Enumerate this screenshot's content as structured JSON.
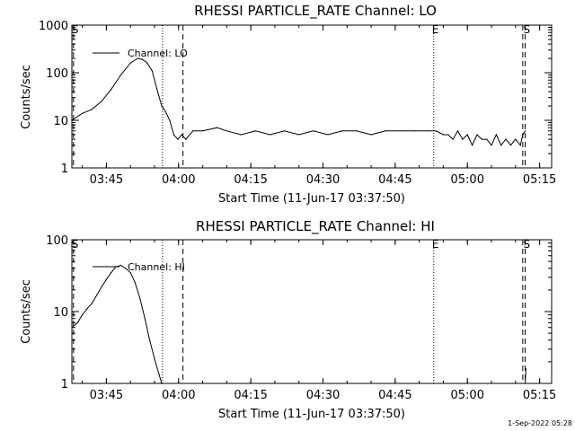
{
  "footer": {
    "timestamp": "1-Sep-2022 05:28"
  },
  "chart_data": [
    {
      "type": "line",
      "title": "RHESSI PARTICLE_RATE Channel: LO",
      "xlabel": "Start Time (11-Jun-17 03:37:50)",
      "ylabel": "Counts/sec",
      "legend_label": "Channel: LO",
      "legend_position": "top-left",
      "y_scale": "log",
      "ylim": [
        1,
        1000
      ],
      "xlim": [
        "03:37:50",
        "05:17:30"
      ],
      "x_ticks": [
        "03:45",
        "04:00",
        "04:15",
        "04:30",
        "04:45",
        "05:00",
        "05:15"
      ],
      "y_ticks": [
        "1",
        "10",
        "100",
        "1000"
      ],
      "markers": [
        {
          "label": "S",
          "time": "03:38:10",
          "style": "dashed"
        },
        {
          "label": "",
          "time": "03:56:40",
          "style": "dotted"
        },
        {
          "label": "",
          "time": "04:00:55",
          "style": "dashed"
        },
        {
          "label": "E",
          "time": "04:53:00",
          "style": "dotted"
        },
        {
          "label": "",
          "time": "05:11:30",
          "style": "dashed"
        },
        {
          "label": "S",
          "time": "05:12:00",
          "style": "dashed"
        }
      ],
      "series": [
        {
          "name": "Channel: LO",
          "x": [
            "03:37:50",
            "03:40:00",
            "03:42:00",
            "03:44:00",
            "03:46:00",
            "03:48:00",
            "03:50:00",
            "03:51:30",
            "03:52:30",
            "03:53:30",
            "03:54:30",
            "03:55:30",
            "03:56:30",
            "03:57:20",
            "03:58:10",
            "03:59:00",
            "03:59:50",
            "04:00:40",
            "04:01:30",
            "04:03:00",
            "04:05:00",
            "04:08:00",
            "04:10:00",
            "04:13:00",
            "04:16:00",
            "04:19:00",
            "04:22:00",
            "04:25:00",
            "04:28:00",
            "04:31:00",
            "04:34:00",
            "04:37:00",
            "04:40:00",
            "04:43:00",
            "04:46:00",
            "04:49:00",
            "04:52:00",
            "04:53:30",
            "04:55:00",
            "04:56:00",
            "04:57:00",
            "04:58:00",
            "04:59:00",
            "05:00:00",
            "05:01:00",
            "05:02:00",
            "05:03:00",
            "05:04:00",
            "05:05:00",
            "05:06:00",
            "05:07:00",
            "05:08:00",
            "05:09:00",
            "05:10:00",
            "05:11:00",
            "05:11:30",
            "05:12:00"
          ],
          "values": [
            10,
            14,
            17,
            25,
            45,
            90,
            160,
            200,
            190,
            160,
            110,
            45,
            20,
            15,
            10,
            5,
            4,
            5,
            4,
            6,
            6,
            7,
            6,
            5,
            6,
            5,
            6,
            5,
            6,
            5,
            6,
            6,
            5,
            6,
            6,
            6,
            6,
            6,
            5,
            5,
            4,
            6,
            4,
            5,
            3,
            5,
            4,
            4,
            3,
            5,
            3,
            4,
            3,
            4,
            3,
            5,
            6
          ]
        }
      ]
    },
    {
      "type": "line",
      "title": "RHESSI PARTICLE_RATE Channel: HI",
      "xlabel": "Start Time (11-Jun-17 03:37:50)",
      "ylabel": "Counts/sec",
      "legend_label": "Channel: HI",
      "legend_position": "top-left",
      "y_scale": "log",
      "ylim": [
        1,
        100
      ],
      "xlim": [
        "03:37:50",
        "05:17:30"
      ],
      "x_ticks": [
        "03:45",
        "04:00",
        "04:15",
        "04:30",
        "04:45",
        "05:00",
        "05:15"
      ],
      "y_ticks": [
        "1",
        "10",
        "100"
      ],
      "markers": [
        {
          "label": "S",
          "time": "03:38:10",
          "style": "dashed"
        },
        {
          "label": "",
          "time": "03:56:40",
          "style": "dotted"
        },
        {
          "label": "",
          "time": "04:00:55",
          "style": "dashed"
        },
        {
          "label": "E",
          "time": "04:53:00",
          "style": "dotted"
        },
        {
          "label": "",
          "time": "05:11:30",
          "style": "dashed"
        },
        {
          "label": "S",
          "time": "05:12:00",
          "style": "dashed"
        }
      ],
      "series": [
        {
          "name": "Channel: HI",
          "x": [
            "03:37:50",
            "03:39:00",
            "03:40:00",
            "03:41:00",
            "03:42:00",
            "03:43:00",
            "03:44:00",
            "03:45:00",
            "03:46:00",
            "03:47:00",
            "03:48:00",
            "03:49:00",
            "03:50:00",
            "03:51:00",
            "03:52:00",
            "03:53:00",
            "03:54:00",
            "03:55:00",
            "03:56:00",
            "03:56:30",
            "05:12:00",
            "05:12:10"
          ],
          "values": [
            6,
            7,
            9,
            11,
            13,
            17,
            22,
            28,
            35,
            42,
            44,
            40,
            35,
            25,
            15,
            8,
            4,
            2.2,
            1.3,
            1.0,
            1.0,
            1.6
          ]
        }
      ]
    }
  ]
}
